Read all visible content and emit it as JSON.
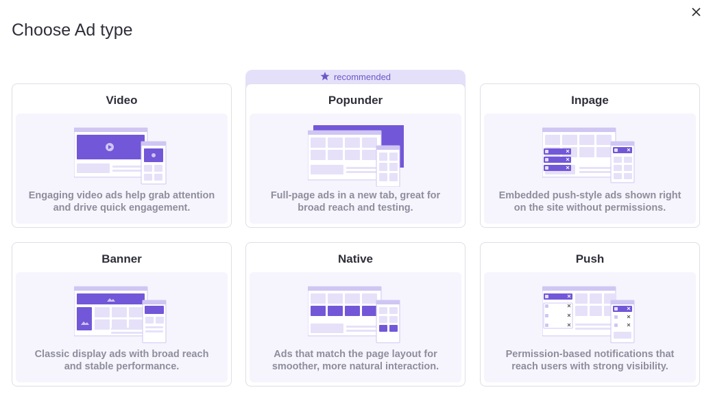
{
  "header": {
    "title": "Choose Ad type"
  },
  "badge": "recommended",
  "cards": [
    {
      "title": "Video",
      "description": [
        "Engaging video ads help grab attention",
        "and drive quick engagement."
      ]
    },
    {
      "title": "Popunder",
      "description": [
        "Full-page ads in a new tab, great for",
        "broad reach and testing."
      ]
    },
    {
      "title": "Inpage",
      "description": [
        "Embedded push-style ads shown right",
        "on the site without permissions."
      ]
    },
    {
      "title": "Banner",
      "description": [
        "Classic display ads with broad reach",
        "and stable performance."
      ]
    },
    {
      "title": "Native",
      "description": [
        "Ads that match the page layout for",
        "smoother, more natural interaction."
      ]
    },
    {
      "title": "Push",
      "description": [
        "Permission-based notifications that",
        "reach users with strong visibility."
      ]
    }
  ]
}
